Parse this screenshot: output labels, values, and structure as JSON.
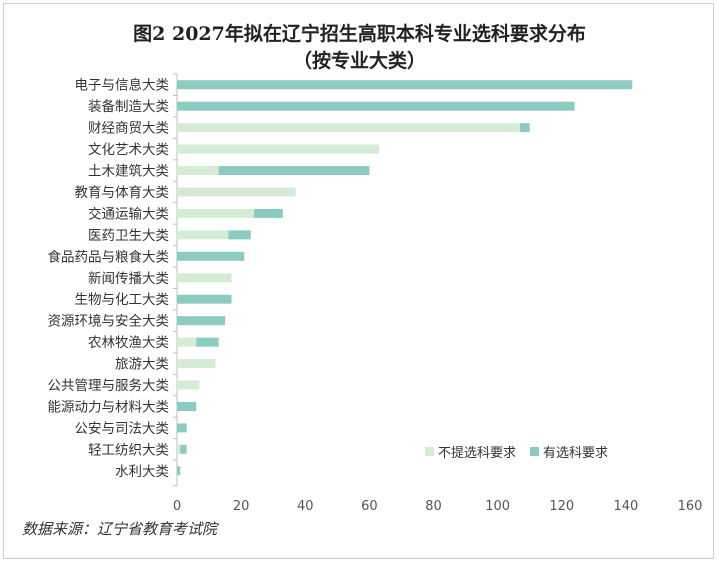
{
  "chart_data": {
    "type": "bar",
    "orientation": "horizontal",
    "stacked": true,
    "title_line1": "图2 2027年拟在辽宁招生高职本科专业选科要求分布",
    "title_line2": "（按专业大类）",
    "categories": [
      "电子与信息大类",
      "装备制造大类",
      "财经商贸大类",
      "文化艺术大类",
      "土木建筑大类",
      "教育与体育大类",
      "交通运输大类",
      "医药卫生大类",
      "食品药品与粮食大类",
      "新闻传播大类",
      "生物与化工大类",
      "资源环境与安全大类",
      "农林牧渔大类",
      "旅游大类",
      "公共管理与服务大类",
      "能源动力与材料大类",
      "公安与司法大类",
      "轻工纺织大类",
      "水利大类"
    ],
    "series": [
      {
        "name": "不提选科要求",
        "color": "#d5ecd4",
        "values": [
          0,
          0,
          107,
          63,
          13,
          37,
          24,
          16,
          0,
          17,
          0,
          0,
          6,
          12,
          7,
          0,
          0,
          1,
          0
        ]
      },
      {
        "name": "有选科要求",
        "color": "#8ccbc1",
        "values": [
          142,
          124,
          3,
          0,
          47,
          0,
          9,
          7,
          21,
          0,
          17,
          15,
          7,
          0,
          0,
          6,
          3,
          2,
          1
        ]
      }
    ],
    "xlim": [
      0,
      160
    ],
    "x_ticks": [
      "0",
      "20",
      "40",
      "60",
      "80",
      "100",
      "120",
      "140",
      "160"
    ],
    "grid": false,
    "legend_position": "bottom-right",
    "source_note": "数据来源：辽宁省教育考试院"
  }
}
